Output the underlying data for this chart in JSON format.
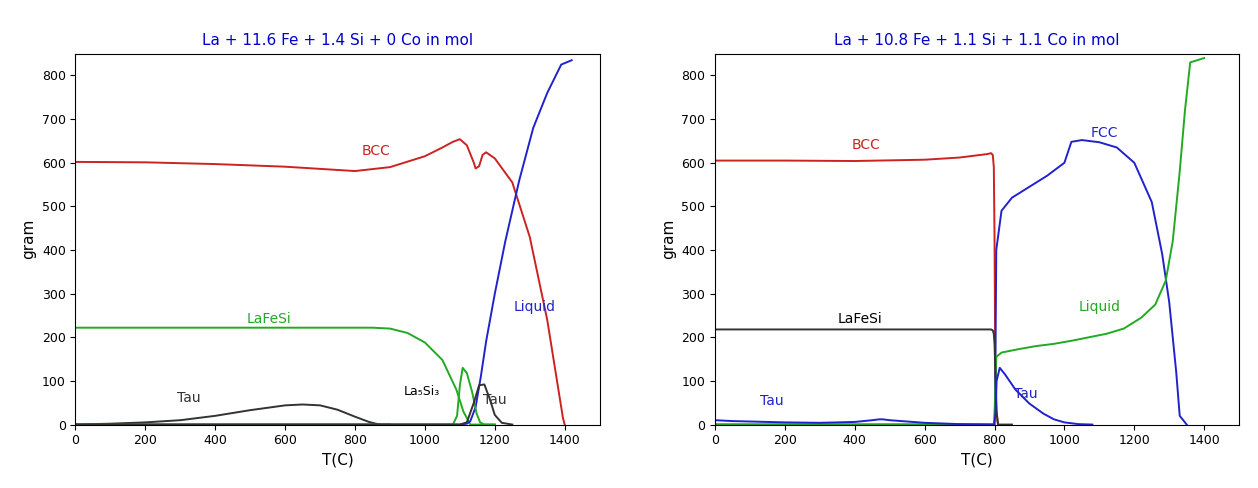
{
  "title1": "La + 11.6 Fe + 1.4 Si + 0 Co in mol",
  "title2": "La + 10.8 Fe + 1.1 Si + 1.1 Co in mol",
  "xlabel": "T(C)",
  "ylabel": "gram",
  "xlim": [
    0,
    1500
  ],
  "ylim": [
    0,
    850
  ],
  "yticks": [
    0,
    100,
    200,
    300,
    400,
    500,
    600,
    700,
    800
  ],
  "xticks": [
    0,
    200,
    400,
    600,
    800,
    1000,
    1200,
    1400
  ],
  "title_color": "#0000cc",
  "bg_color": "#ffffff",
  "colors": {
    "BCC": "#cc2222",
    "LaFeSi1": "#22aa22",
    "Liquid1": "#2222cc",
    "Tau1_small": "#333333",
    "La5Si3": "#22aa22",
    "Tau1_high": "#333333",
    "LaFeSi2": "#333333",
    "BCC2": "#cc2222",
    "FCC": "#2222cc",
    "Liquid2": "#22aa22",
    "Tau2_low": "#2222cc",
    "Tau2_high": "#2222cc"
  }
}
